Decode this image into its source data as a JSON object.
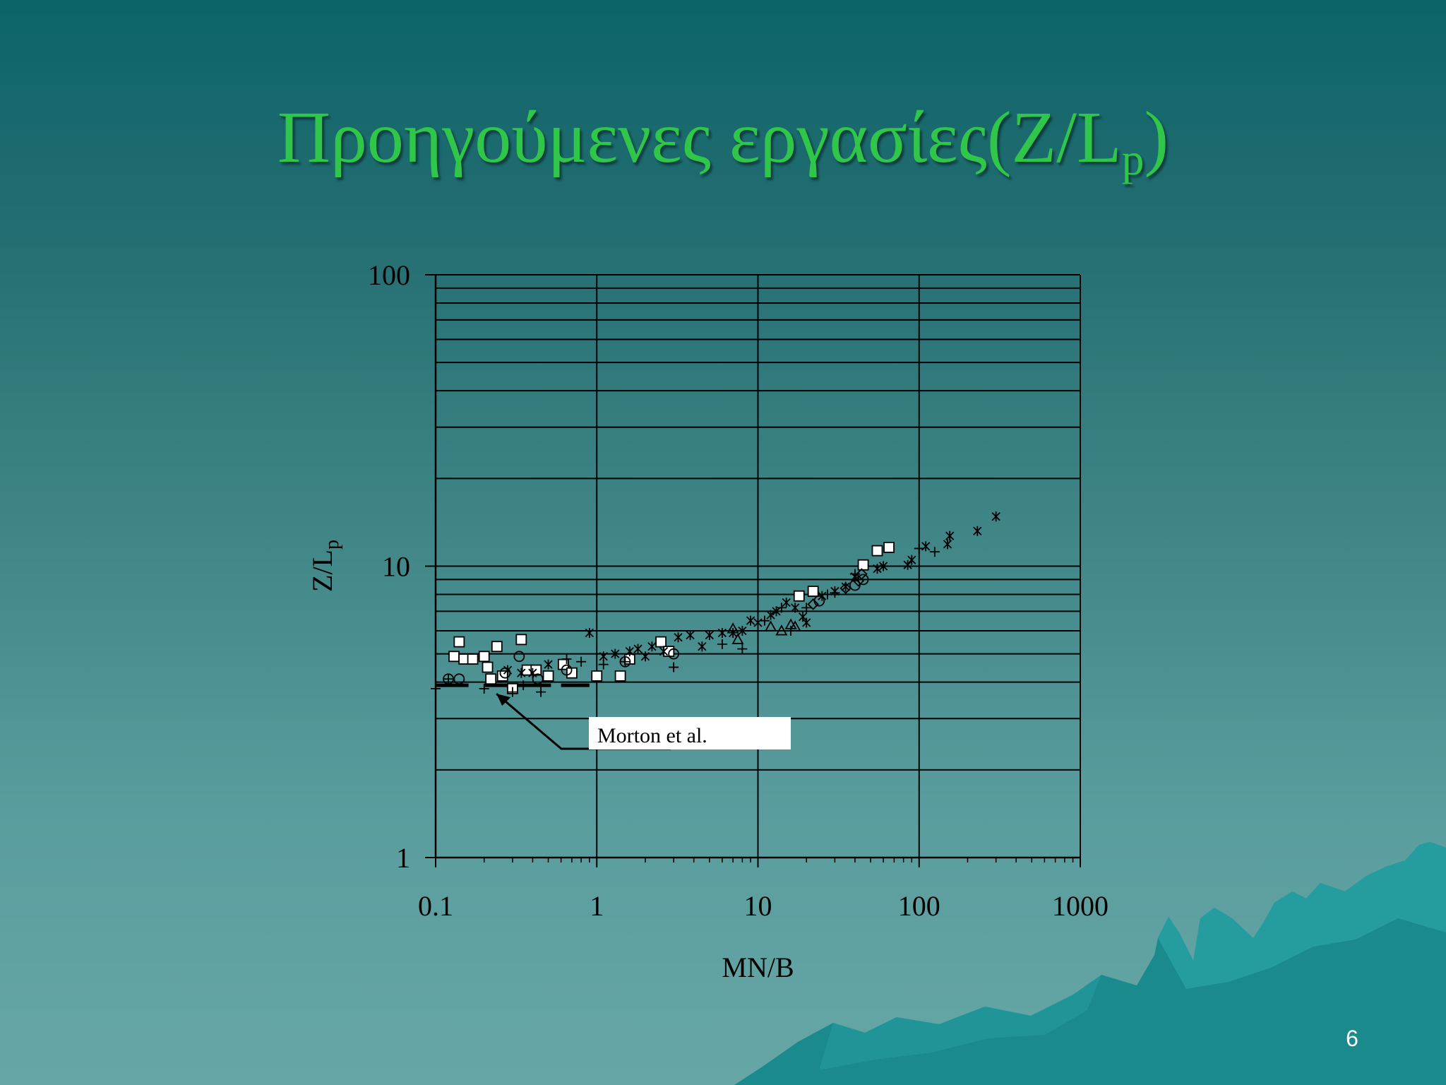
{
  "slide": {
    "title_main": "Προηγούμενες εργασίες(Z/L",
    "title_sub": "p",
    "title_end": ")",
    "page_number": "6",
    "title_color": "#2fc64a"
  },
  "chart_data": {
    "type": "scatter",
    "xlabel": "MN/B",
    "ylabel_main": "Z/L",
    "ylabel_sub": "p",
    "x_scale": "log",
    "y_scale": "log",
    "xlim": [
      0.1,
      1000
    ],
    "ylim": [
      1,
      100
    ],
    "x_ticks": [
      "0.1",
      "1",
      "10",
      "100",
      "1000"
    ],
    "y_ticks": [
      "1",
      "10",
      "100"
    ],
    "grid": true,
    "annotation": "Morton et al.",
    "morton_segments": [
      {
        "x": [
          0.1,
          0.16
        ],
        "y": 3.9
      },
      {
        "x": [
          0.2,
          0.52
        ],
        "y": 3.9
      },
      {
        "x": [
          0.6,
          0.9
        ],
        "y": 3.9
      }
    ],
    "series": [
      {
        "marker": "square",
        "points": [
          [
            0.13,
            4.9
          ],
          [
            0.14,
            5.5
          ],
          [
            0.15,
            4.8
          ],
          [
            0.17,
            4.8
          ],
          [
            0.2,
            4.9
          ],
          [
            0.21,
            4.5
          ],
          [
            0.22,
            4.1
          ],
          [
            0.24,
            5.3
          ],
          [
            0.26,
            4.2
          ],
          [
            0.3,
            3.8
          ],
          [
            0.34,
            5.6
          ],
          [
            0.37,
            4.4
          ],
          [
            0.42,
            4.4
          ],
          [
            0.5,
            4.2
          ],
          [
            0.62,
            4.6
          ],
          [
            0.7,
            4.3
          ],
          [
            1.0,
            4.2
          ],
          [
            1.4,
            4.2
          ],
          [
            1.6,
            4.8
          ],
          [
            2.5,
            5.5
          ],
          [
            2.8,
            5.1
          ],
          [
            18,
            7.9
          ],
          [
            22,
            8.2
          ],
          [
            45,
            10.1
          ],
          [
            55,
            11.3
          ],
          [
            65,
            11.6
          ]
        ]
      },
      {
        "marker": "circle",
        "points": [
          [
            0.12,
            4.1
          ],
          [
            0.14,
            4.1
          ],
          [
            0.27,
            4.3
          ],
          [
            0.33,
            4.9
          ],
          [
            0.43,
            4.1
          ],
          [
            0.65,
            4.4
          ],
          [
            1.5,
            4.7
          ],
          [
            3,
            5.0
          ],
          [
            24,
            7.6
          ],
          [
            40,
            8.6
          ],
          [
            45,
            9.0
          ]
        ]
      },
      {
        "marker": "triangle",
        "points": [
          [
            7,
            6.1
          ],
          [
            7.5,
            5.6
          ],
          [
            12,
            6.2
          ],
          [
            14,
            6.0
          ],
          [
            16,
            6.3
          ],
          [
            17,
            6.2
          ]
        ]
      },
      {
        "marker": "diamond",
        "points": [
          [
            22,
            7.4
          ],
          [
            35,
            8.4
          ],
          [
            42,
            8.9
          ],
          [
            44,
            9.4
          ]
        ]
      },
      {
        "marker": "plus",
        "points": [
          [
            0.1,
            3.8
          ],
          [
            0.12,
            4.1
          ],
          [
            0.2,
            3.8
          ],
          [
            0.3,
            3.7
          ],
          [
            0.35,
            3.9
          ],
          [
            0.45,
            3.7
          ],
          [
            0.65,
            4.8
          ],
          [
            0.8,
            4.7
          ],
          [
            1.1,
            4.6
          ],
          [
            1.5,
            4.7
          ],
          [
            3,
            4.5
          ],
          [
            6,
            5.4
          ],
          [
            8,
            5.2
          ],
          [
            11,
            6.5
          ],
          [
            14,
            7.2
          ],
          [
            16,
            6.0
          ],
          [
            20,
            7.2
          ],
          [
            27,
            8.0
          ],
          [
            30,
            8.1
          ],
          [
            40,
            9.4
          ],
          [
            100,
            11.5
          ],
          [
            125,
            11.2
          ]
        ]
      },
      {
        "marker": "star",
        "points": [
          [
            0.28,
            4.4
          ],
          [
            0.34,
            4.3
          ],
          [
            0.4,
            4.3
          ],
          [
            0.5,
            4.6
          ],
          [
            0.9,
            5.9
          ],
          [
            1.1,
            4.9
          ],
          [
            1.3,
            5.0
          ],
          [
            1.6,
            5.1
          ],
          [
            1.8,
            5.2
          ],
          [
            2.0,
            4.9
          ],
          [
            2.2,
            5.3
          ],
          [
            2.6,
            5.1
          ],
          [
            3.2,
            5.7
          ],
          [
            3.8,
            5.8
          ],
          [
            4.5,
            5.3
          ],
          [
            5,
            5.8
          ],
          [
            6,
            5.9
          ],
          [
            7,
            5.9
          ],
          [
            8,
            6.0
          ],
          [
            9,
            6.5
          ],
          [
            10,
            6.4
          ],
          [
            12,
            6.8
          ],
          [
            13,
            7.0
          ],
          [
            15,
            7.5
          ],
          [
            17,
            7.2
          ],
          [
            19,
            6.7
          ],
          [
            20,
            6.4
          ],
          [
            25,
            7.9
          ],
          [
            30,
            8.2
          ],
          [
            35,
            8.5
          ],
          [
            40,
            9.2
          ],
          [
            55,
            9.8
          ],
          [
            60,
            10.0
          ],
          [
            85,
            10.1
          ],
          [
            90,
            10.5
          ],
          [
            110,
            11.7
          ],
          [
            150,
            11.9
          ],
          [
            155,
            12.7
          ],
          [
            230,
            13.2
          ],
          [
            300,
            14.8
          ]
        ]
      }
    ]
  }
}
